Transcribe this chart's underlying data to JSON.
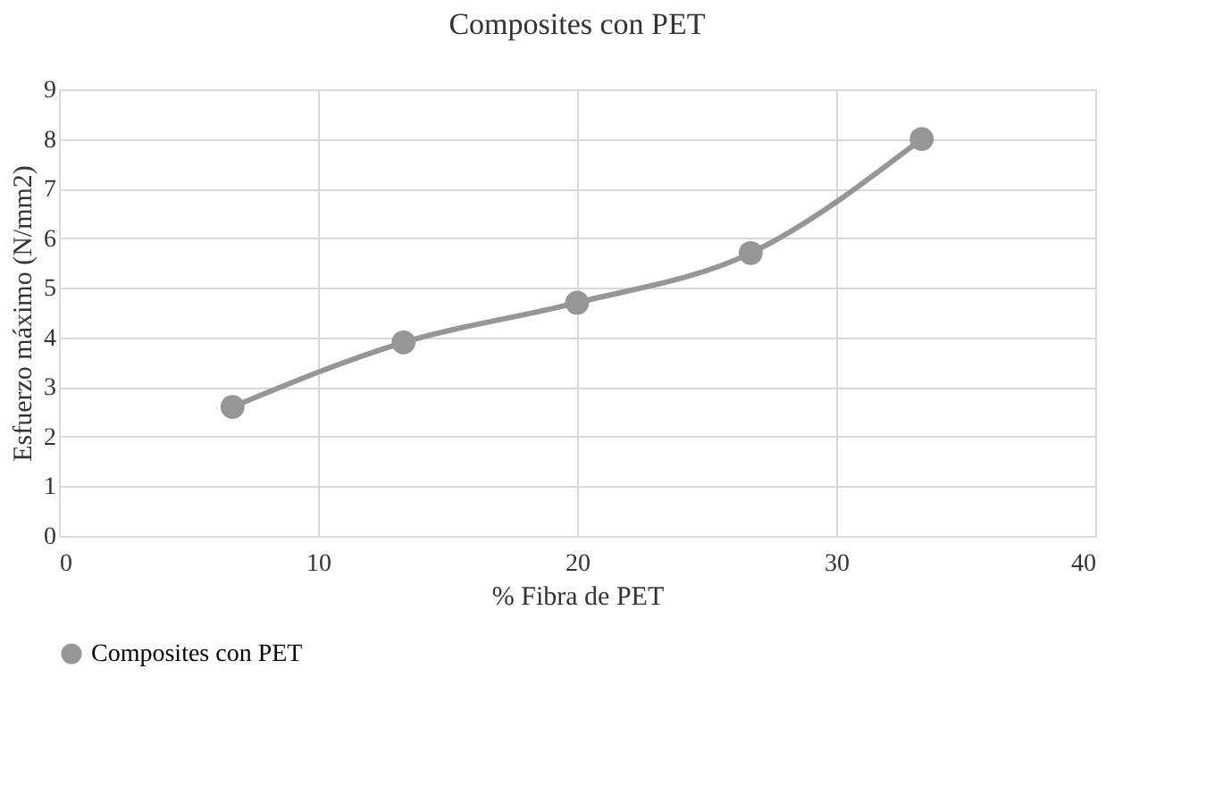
{
  "chart_data": {
    "type": "line",
    "title": "Composites con PET",
    "xlabel": "% Fibra de PET",
    "ylabel": "Esfuerzo máximo (N/mm2)",
    "x": [
      6.7,
      13.3,
      20,
      26.7,
      33.3
    ],
    "series": [
      {
        "name": "Composites con PET",
        "color": "#969696",
        "values": [
          2.6,
          3.9,
          4.7,
          5.7,
          8.0
        ]
      }
    ],
    "xlim": [
      0,
      40
    ],
    "xticks": [
      0,
      10,
      20,
      30,
      40
    ],
    "ylim": [
      0,
      9
    ],
    "yticks": [
      0,
      1,
      2,
      3,
      4,
      5,
      6,
      7,
      8,
      9
    ],
    "grid": true,
    "legend": "bottom",
    "marker": "circle",
    "line_style": "solid"
  }
}
